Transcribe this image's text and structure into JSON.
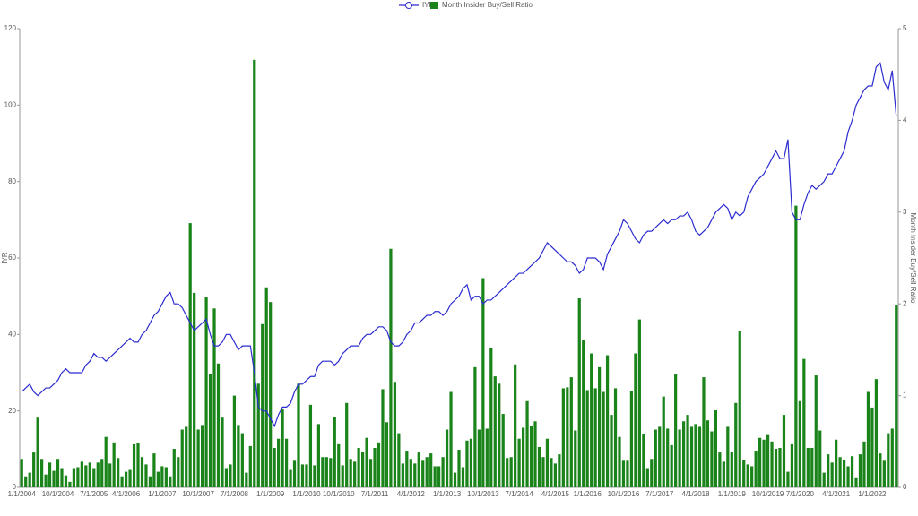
{
  "chart_data": {
    "type": "bar",
    "ylabel": "IYR",
    "y2label": "Month Insider Buy/Sell Ratio",
    "ylim": [
      0,
      120
    ],
    "yticks": [
      0,
      20,
      40,
      60,
      80,
      100,
      120
    ],
    "y2lim": [
      0,
      5
    ],
    "y2ticks": [
      0,
      1,
      2,
      3,
      4,
      5
    ],
    "legend": "top",
    "categories": [
      "1/1/2004",
      null,
      null,
      null,
      null,
      null,
      null,
      null,
      null,
      "10/1/2004",
      null,
      null,
      null,
      null,
      null,
      null,
      null,
      null,
      "7/1/2005",
      null,
      null,
      null,
      null,
      null,
      null,
      null,
      "4/1/2006",
      null,
      null,
      null,
      null,
      null,
      null,
      null,
      null,
      "1/1/2007",
      null,
      null,
      null,
      null,
      null,
      null,
      null,
      null,
      "10/1/2007",
      null,
      null,
      null,
      null,
      null,
      null,
      null,
      null,
      "7/1/2008",
      null,
      null,
      null,
      null,
      null,
      null,
      null,
      null,
      "1/1/2009",
      null,
      null,
      null,
      null,
      null,
      null,
      null,
      null,
      "1/1/2010",
      null,
      null,
      null,
      null,
      null,
      null,
      null,
      "10/1/2010",
      null,
      null,
      null,
      null,
      null,
      null,
      null,
      null,
      "7/1/2011",
      null,
      null,
      null,
      null,
      null,
      null,
      null,
      null,
      "4/1/2012",
      null,
      null,
      null,
      null,
      null,
      null,
      null,
      null,
      "1/1/2013",
      null,
      null,
      null,
      null,
      null,
      null,
      null,
      null,
      "10/1/2013",
      null,
      null,
      null,
      null,
      null,
      null,
      null,
      null,
      "7/1/2014",
      null,
      null,
      null,
      null,
      null,
      null,
      null,
      null,
      "4/1/2015",
      null,
      null,
      null,
      null,
      null,
      null,
      null,
      "1/1/2016",
      null,
      null,
      null,
      null,
      null,
      null,
      null,
      null,
      "10/1/2016",
      null,
      null,
      null,
      null,
      null,
      null,
      null,
      null,
      "7/1/2017",
      null,
      null,
      null,
      null,
      null,
      null,
      null,
      null,
      "4/1/2018",
      null,
      null,
      null,
      null,
      null,
      null,
      null,
      null,
      "1/1/2019",
      null,
      null,
      null,
      null,
      null,
      null,
      null,
      null,
      "10/1/2019",
      null,
      null,
      null,
      null,
      null,
      null,
      null,
      "7/1/2020",
      null,
      null,
      null,
      null,
      null,
      null,
      null,
      null,
      "4/1/2021",
      null,
      null,
      null,
      null,
      null,
      null,
      null,
      null,
      "1/1/2022",
      null,
      null,
      null,
      null,
      null,
      null
    ],
    "series": [
      {
        "name": "Month Insider Buy/Sell Ratio",
        "type": "bar",
        "axis": "y2",
        "color": "#1a841a",
        "values": [
          0.31,
          0.12,
          0.16,
          0.38,
          0.76,
          0.31,
          0.14,
          0.27,
          0.18,
          0.31,
          0.21,
          0.13,
          0.06,
          0.21,
          0.22,
          0.28,
          0.24,
          0.27,
          0.21,
          0.27,
          0.31,
          0.55,
          0.26,
          0.49,
          0.32,
          0.12,
          0.17,
          0.19,
          0.47,
          0.48,
          0.33,
          0.25,
          0.12,
          0.37,
          0.17,
          0.23,
          0.22,
          0.12,
          0.42,
          0.33,
          0.63,
          0.66,
          2.88,
          2.12,
          0.63,
          0.68,
          2.08,
          1.24,
          1.95,
          1.35,
          0.76,
          0.21,
          0.25,
          1.0,
          0.68,
          0.59,
          0.16,
          0.45,
          4.66,
          1.13,
          1.78,
          2.18,
          2.02,
          0.43,
          0.53,
          0.85,
          0.53,
          0.19,
          0.29,
          1.13,
          0.25,
          0.25,
          0.9,
          0.24,
          0.69,
          0.33,
          0.33,
          0.32,
          0.77,
          0.47,
          0.24,
          0.92,
          0.31,
          0.28,
          0.43,
          0.39,
          0.54,
          0.31,
          0.43,
          0.49,
          1.07,
          0.71,
          2.6,
          1.15,
          0.59,
          0.26,
          0.4,
          0.31,
          0.26,
          0.38,
          0.29,
          0.33,
          0.37,
          0.23,
          0.23,
          0.33,
          0.63,
          1.04,
          0.16,
          0.41,
          0.22,
          0.51,
          0.53,
          1.31,
          0.63,
          2.28,
          0.64,
          1.52,
          1.21,
          1.13,
          0.8,
          0.32,
          0.33,
          1.34,
          0.53,
          0.65,
          0.94,
          0.67,
          0.72,
          0.44,
          0.33,
          0.53,
          0.32,
          0.26,
          0.36,
          1.08,
          1.09,
          1.2,
          0.62,
          2.06,
          1.61,
          1.06,
          1.46,
          1.08,
          1.31,
          1.04,
          1.44,
          0.79,
          1.08,
          0.55,
          0.29,
          0.29,
          1.05,
          1.46,
          1.83,
          0.58,
          0.21,
          0.31,
          0.63,
          0.66,
          0.99,
          0.64,
          0.46,
          1.23,
          0.63,
          0.72,
          0.79,
          0.66,
          0.69,
          0.66,
          1.2,
          0.73,
          0.61,
          0.84,
          0.38,
          0.28,
          0.66,
          0.39,
          0.92,
          1.7,
          0.3,
          0.25,
          0.23,
          0.4,
          0.54,
          0.52,
          0.57,
          0.5,
          0.42,
          0.43,
          0.79,
          0.17,
          0.47,
          3.07,
          0.94,
          1.4,
          0.43,
          0.43,
          1.22,
          0.62,
          0.16,
          0.36,
          0.27,
          0.52,
          0.33,
          0.3,
          0.23,
          0.34,
          0.1,
          0.36,
          0.5,
          1.04,
          0.87,
          1.18,
          0.37,
          0.29,
          0.59,
          0.64,
          1.99
        ]
      },
      {
        "name": "IYR",
        "type": "line",
        "color": "#2b2bd0",
        "values": [
          25,
          26,
          27,
          25,
          24,
          25,
          26,
          26,
          27,
          28,
          30,
          31,
          30,
          30,
          30,
          30,
          32,
          33,
          35,
          34,
          34,
          33,
          34,
          35,
          36,
          37,
          38,
          39,
          38,
          38,
          40,
          41,
          43,
          45,
          46,
          48,
          50,
          51,
          48,
          48,
          47,
          45,
          43,
          41,
          42,
          43,
          44,
          40,
          37,
          37,
          38,
          40,
          40,
          38,
          36,
          37,
          37,
          37,
          30,
          21,
          20,
          20,
          18,
          16,
          19,
          21,
          21,
          22,
          25,
          27,
          27,
          28,
          29,
          29,
          32,
          33,
          33,
          33,
          32,
          33,
          35,
          36,
          37,
          37,
          37,
          39,
          40,
          40,
          41,
          42,
          42,
          41,
          38,
          37,
          37,
          38,
          40,
          41,
          43,
          43,
          44,
          45,
          45,
          46,
          46,
          45,
          46,
          48,
          49,
          50,
          52,
          53,
          49,
          50,
          50,
          48,
          49,
          49,
          50,
          51,
          52,
          53,
          54,
          55,
          56,
          56,
          57,
          58,
          59,
          60,
          62,
          64,
          63,
          62,
          61,
          60,
          59,
          59,
          58,
          56,
          57,
          60,
          60,
          60,
          59,
          57,
          61,
          63,
          65,
          67,
          70,
          69,
          67,
          65,
          64,
          66,
          67,
          67,
          68,
          69,
          70,
          69,
          70,
          70,
          71,
          71,
          72,
          70,
          67,
          66,
          67,
          68,
          70,
          72,
          73,
          74,
          73,
          70,
          72,
          71,
          72,
          76,
          78,
          80,
          81,
          82,
          84,
          86,
          88,
          86,
          86,
          91,
          72,
          70,
          70,
          74,
          77,
          79,
          78,
          79,
          80,
          82,
          82,
          84,
          86,
          88,
          93,
          96,
          100,
          102,
          104,
          105,
          105,
          110,
          111,
          106,
          104,
          109,
          97
        ]
      }
    ]
  }
}
